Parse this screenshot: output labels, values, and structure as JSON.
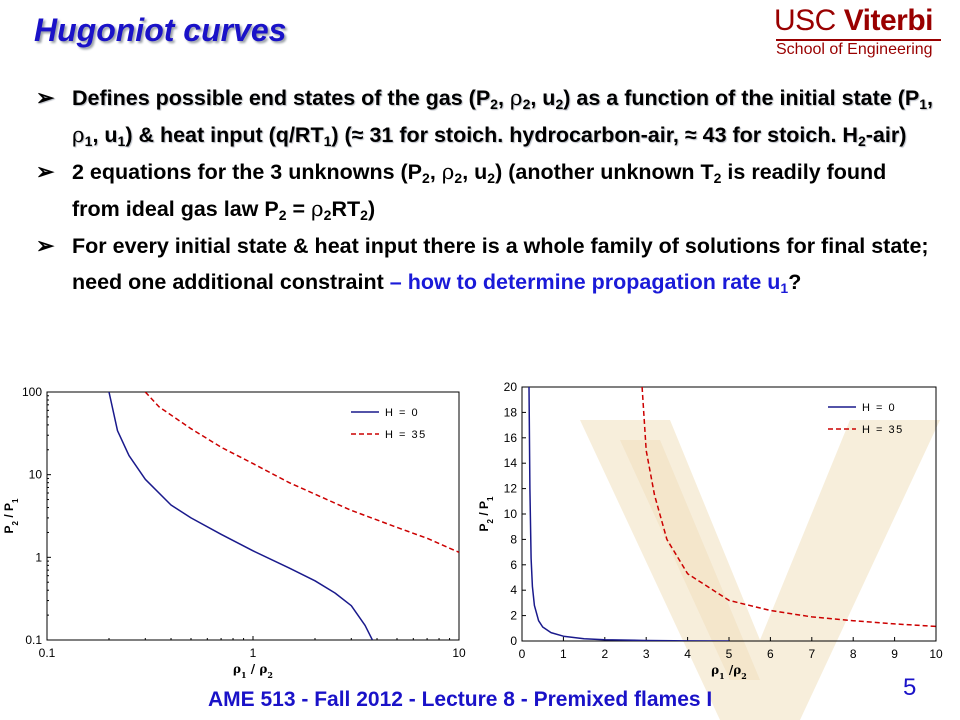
{
  "slide": {
    "title": "Hugoniot curves",
    "logo": {
      "line1_a": "USC ",
      "line1_b": "Viterbi",
      "line2": "School of Engineering"
    },
    "footer": "AME 513 - Fall 2012 - Lecture 8 - Premixed flames I",
    "page_number": "5"
  },
  "bullets": {
    "b1": {
      "t1": "Defines possible end states of the gas (P",
      "s1": "2",
      "t2": ", ",
      "r1": "ρ",
      "s2": "2",
      "t3": ", u",
      "s3": "2",
      "t4": ") as a function of the initial state (P",
      "s4": "1",
      "t5": ", ",
      "r2": "ρ",
      "s5": "1",
      "t6": ", u",
      "s6": "1",
      "t7": ") & heat input (q/RT",
      "s7": "1",
      "t8": ") (≈ 31 for stoich. hydrocarbon-air, ≈ 43 for stoich. H",
      "s8": "2",
      "t9": "-air)"
    },
    "b2": {
      "t1": "2 equations for the 3 unknowns (P",
      "s1": "2",
      "t2": ", ",
      "r1": "ρ",
      "s2": "2",
      "t3": ", u",
      "s3": "2",
      "t4": ") (another unknown T",
      "s4": "2",
      "t5": " is readily found from ideal gas law P",
      "s5": "2",
      "t6": " = ",
      "r2": "ρ",
      "s6": "2",
      "t7": "RT",
      "s7": "2",
      "t8": ")"
    },
    "b3": {
      "t1": "For every initial state & heat input there is a whole family of solutions for final state; need one additional constraint ",
      "t2": "– how to determine propagation rate u",
      "s1": "1",
      "t3": "?"
    }
  },
  "chart_data": [
    {
      "type": "line",
      "xscale": "log",
      "yscale": "log",
      "xlim": [
        0.1,
        10
      ],
      "ylim": [
        0.1,
        100
      ],
      "xticks": [
        0.1,
        1,
        10
      ],
      "xtick_labels": [
        "0.1",
        "1",
        "10"
      ],
      "yticks": [
        0.1,
        1,
        10,
        100
      ],
      "ytick_labels": [
        "0.1",
        "1",
        "10",
        "100"
      ],
      "xlabel": "ρ1 / ρ2",
      "ylabel": "P2 / P1",
      "grid": false,
      "legend": "top-right",
      "series": [
        {
          "name": "H = 0",
          "color": "#1a1a8c",
          "dash": "solid",
          "x": [
            0.2,
            0.22,
            0.25,
            0.3,
            0.4,
            0.5,
            0.7,
            1.0,
            1.5,
            2.0,
            2.5,
            3.0,
            3.5,
            3.8
          ],
          "y": [
            100,
            34,
            17,
            8.8,
            4.3,
            3.0,
            1.9,
            1.2,
            0.74,
            0.52,
            0.37,
            0.26,
            0.15,
            0.1
          ]
        },
        {
          "name": "H = 35",
          "color": "#cc0000",
          "dash": "dashed",
          "x": [
            0.3,
            0.35,
            0.5,
            0.7,
            1.0,
            1.5,
            2.0,
            3.0,
            5.0,
            7.0,
            10.0
          ],
          "y": [
            100,
            66,
            36,
            21.5,
            13.6,
            8.0,
            5.8,
            3.7,
            2.3,
            1.7,
            1.15
          ]
        }
      ]
    },
    {
      "type": "line",
      "xscale": "linear",
      "yscale": "linear",
      "xlim": [
        0,
        10
      ],
      "ylim": [
        0,
        20
      ],
      "xticks": [
        0,
        1,
        2,
        3,
        4,
        5,
        6,
        7,
        8,
        9,
        10
      ],
      "xtick_labels": [
        "0",
        "1",
        "2",
        "3",
        "4",
        "5",
        "6",
        "7",
        "8",
        "9",
        "10"
      ],
      "yticks": [
        0,
        2,
        4,
        6,
        8,
        10,
        12,
        14,
        16,
        18,
        20
      ],
      "ytick_labels": [
        "0",
        "2",
        "4",
        "6",
        "8",
        "10",
        "12",
        "14",
        "16",
        "18",
        "20"
      ],
      "xlabel": "ρ1 /ρ2",
      "ylabel": "P2 / P1",
      "grid": false,
      "legend": "top-right",
      "series": [
        {
          "name": "H = 0",
          "color": "#1a1a8c",
          "dash": "solid",
          "x": [
            0.17,
            0.19,
            0.22,
            0.25,
            0.3,
            0.4,
            0.5,
            0.7,
            1.0,
            1.5,
            2.0,
            3.0,
            4.0,
            5.0
          ],
          "y": [
            20,
            12,
            6.5,
            4.3,
            2.8,
            1.6,
            1.1,
            0.66,
            0.38,
            0.18,
            0.1,
            0.04,
            0.01,
            0.0
          ]
        },
        {
          "name": "H = 35",
          "color": "#cc0000",
          "dash": "dashed",
          "x": [
            2.9,
            3.0,
            3.2,
            3.5,
            4.0,
            5.0,
            6.0,
            7.0,
            8.0,
            9.0,
            10.0
          ],
          "y": [
            20,
            15,
            11.5,
            8.0,
            5.3,
            3.2,
            2.4,
            1.9,
            1.6,
            1.35,
            1.15
          ]
        }
      ]
    }
  ]
}
